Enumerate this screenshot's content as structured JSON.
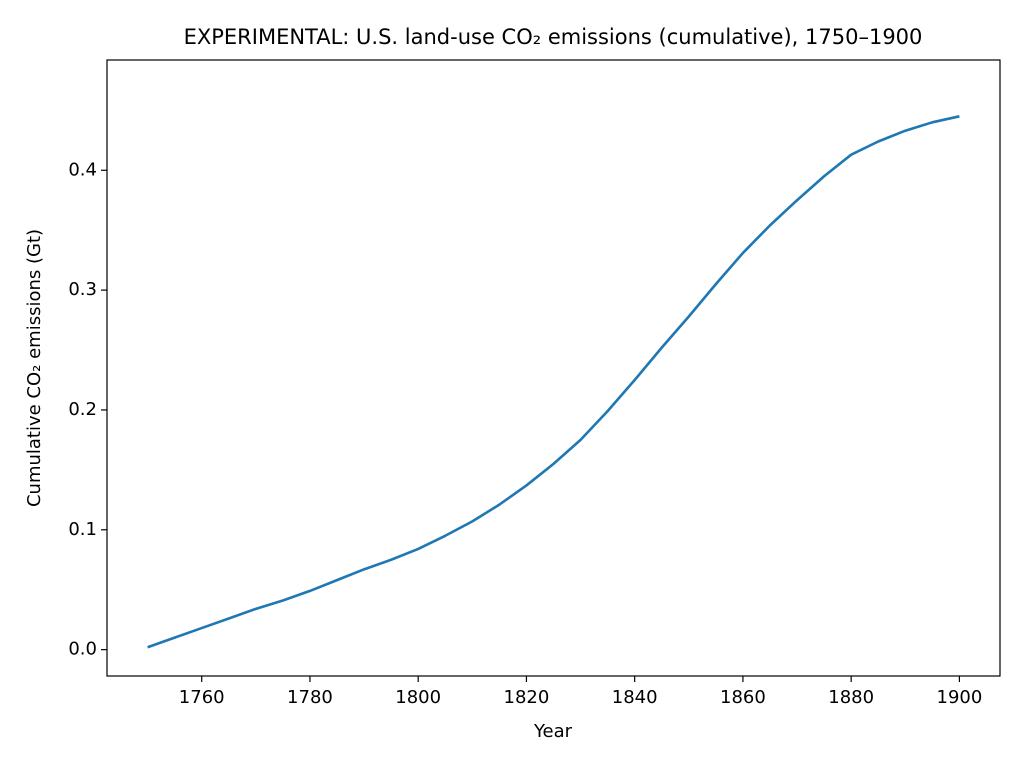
{
  "chart_data": {
    "type": "line",
    "title": "EXPERIMENTAL: U.S. land-use CO₂ emissions (cumulative), 1750–1900",
    "x_label": "Year",
    "y_label": "Cumulative CO₂ emissions (Gt)",
    "x": [
      1750,
      1755,
      1760,
      1765,
      1770,
      1775,
      1780,
      1785,
      1790,
      1795,
      1800,
      1805,
      1810,
      1815,
      1820,
      1825,
      1830,
      1835,
      1840,
      1845,
      1850,
      1855,
      1860,
      1865,
      1870,
      1875,
      1880,
      1885,
      1890,
      1895,
      1900
    ],
    "series": [
      {
        "name": "Cumulative CO₂ emissions",
        "color": "#1f77b4",
        "values": [
          0.002,
          0.01,
          0.018,
          0.026,
          0.034,
          0.041,
          0.049,
          0.058,
          0.067,
          0.075,
          0.084,
          0.095,
          0.107,
          0.121,
          0.137,
          0.155,
          0.175,
          0.199,
          0.225,
          0.252,
          0.278,
          0.305,
          0.331,
          0.354,
          0.375,
          0.395,
          0.413,
          0.424,
          0.433,
          0.44,
          0.445
        ]
      }
    ],
    "xlim": [
      1742.5,
      1907.5
    ],
    "ylim": [
      -0.022,
      0.492
    ],
    "xticks": [
      1760,
      1780,
      1800,
      1820,
      1840,
      1860,
      1880,
      1900
    ],
    "yticks": [
      {
        "value": 0,
        "label": "0.0"
      },
      0.1,
      0.2,
      0.3,
      0.4
    ],
    "grid": false
  }
}
